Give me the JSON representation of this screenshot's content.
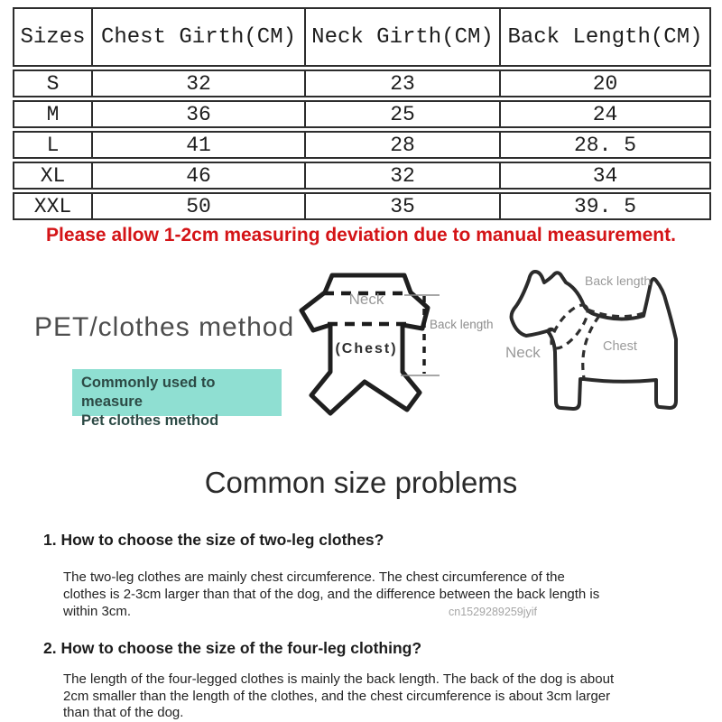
{
  "size_table": {
    "headers": [
      "Sizes",
      "Chest Girth(CM)",
      "Neck Girth(CM)",
      "Back Length(CM)"
    ],
    "rows": [
      [
        "S",
        "32",
        "23",
        "20"
      ],
      [
        "M",
        "36",
        "25",
        "24"
      ],
      [
        "L",
        "41",
        "28",
        "28. 5"
      ],
      [
        "XL",
        "46",
        "32",
        "34"
      ],
      [
        "XXL",
        "50",
        "35",
        "39. 5"
      ]
    ]
  },
  "notice": {
    "text": "Please allow 1-2cm measuring deviation due to manual measurement."
  },
  "measure_section": {
    "title": "PET/clothes method",
    "highlight": {
      "lines": [
        "Commonly used to measure",
        "Pet clothes method"
      ]
    },
    "clothes_diagram": {
      "neck_label": "Neck",
      "chest_label": "(Chest)",
      "back_length_label": "Back length"
    },
    "dog_diagram": {
      "neck_label": "Neck",
      "chest_label": "Chest",
      "back_length_label": "Back length"
    }
  },
  "problems_section": {
    "title": "Common size problems",
    "items": [
      {
        "question": "1. How to choose the size of two-leg clothes?",
        "answer_lines": [
          "The two-leg clothes are mainly chest circumference. The chest circumference of the",
          "clothes is 2-3cm larger than that of the dog, and the difference between the back length is",
          "within 3cm."
        ]
      },
      {
        "question": "2. How to choose the size of the four-leg clothing?",
        "answer_lines": [
          "The length of the four-legged clothes is mainly the back length. The back of the dog is about",
          "2cm smaller than the length of the clothes, and the chest circumference is about 3cm larger",
          "than that of the dog."
        ]
      }
    ],
    "watermark": "cn1529289259jyif"
  },
  "colors": {
    "notice_red": "#d41417",
    "highlight_bg": "#8fdfd2",
    "highlight_text": "#2c4a45",
    "outline_black": "#2b2b2b",
    "label_gray": "#9a9a9a"
  }
}
